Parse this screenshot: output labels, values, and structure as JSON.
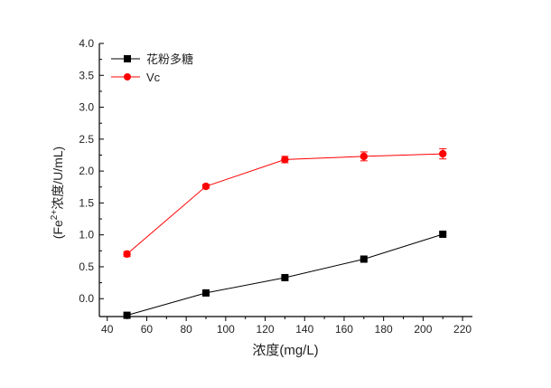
{
  "chart_data": {
    "type": "line",
    "title": "",
    "xlabel": "浓度(mg/L)",
    "ylabel_pre": "(Fe",
    "ylabel_sup": "2+",
    "ylabel_post": "浓度/U/mL)",
    "xlim": [
      36,
      225
    ],
    "ylim": [
      -0.28,
      4.0
    ],
    "xticks": [
      40,
      60,
      80,
      100,
      120,
      140,
      160,
      180,
      200,
      220
    ],
    "yticks": [
      0.0,
      0.5,
      1.0,
      1.5,
      2.0,
      2.5,
      3.0,
      3.5,
      4.0
    ],
    "ytick_labels": [
      "0.0",
      "0.5",
      "1.0",
      "1.5",
      "2.0",
      "2.5",
      "3.0",
      "3.5",
      "4.0"
    ],
    "grid": false,
    "legend_position": "top-left",
    "x": [
      50,
      90,
      130,
      170,
      210
    ],
    "series": [
      {
        "name": "花粉多糖",
        "color": "#000000",
        "marker": "square",
        "values": [
          -0.26,
          0.09,
          0.33,
          0.62,
          1.01
        ],
        "errors": [
          0.02,
          0.02,
          0.02,
          0.02,
          0.02
        ]
      },
      {
        "name": "Vc",
        "color": "#ff0000",
        "marker": "circle",
        "values": [
          0.7,
          1.76,
          2.18,
          2.23,
          2.27
        ],
        "errors": [
          0.04,
          0.03,
          0.05,
          0.07,
          0.08
        ]
      }
    ]
  }
}
